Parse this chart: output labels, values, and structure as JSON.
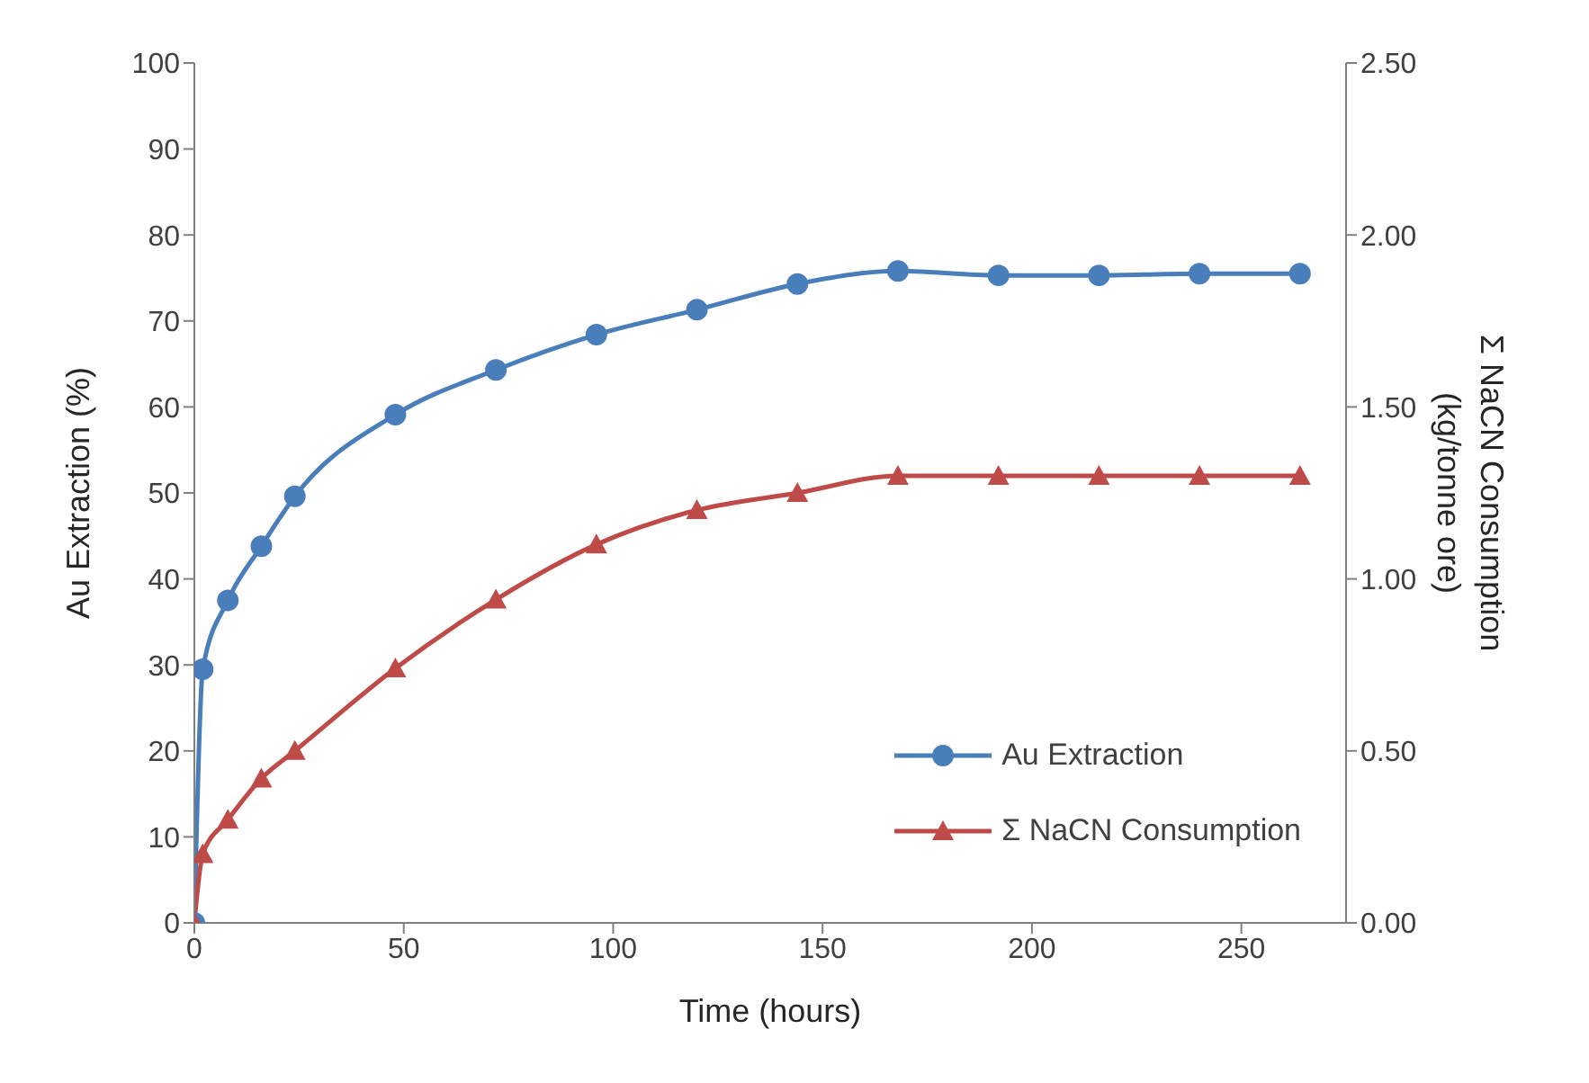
{
  "chart_data": {
    "type": "line",
    "xlabel": "Time (hours)",
    "ylabel": "Au Extraction (%)",
    "y2label": "Σ NaCN Consumption (kg/tonne ore)",
    "x": [
      0,
      2,
      8,
      16,
      24,
      48,
      72,
      96,
      120,
      144,
      168,
      192,
      216,
      240,
      264
    ],
    "series": [
      {
        "name": "Au Extraction",
        "color": "#4a7ebb",
        "marker": "circle",
        "values": [
          0,
          29.5,
          37.5,
          43.8,
          49.6,
          59.1,
          64.3,
          68.4,
          71.3,
          74.3,
          75.8,
          75.3,
          75.3,
          75.5,
          75.5
        ]
      },
      {
        "name": "Σ NaCN Consumption",
        "color": "#be4b48",
        "marker": "triangle",
        "axis": "y2",
        "values": [
          0,
          0.2,
          0.3,
          0.42,
          0.5,
          0.74,
          0.94,
          1.1,
          1.2,
          1.25,
          1.3,
          1.3,
          1.3,
          1.3,
          1.3
        ]
      }
    ],
    "xlim": [
      0,
      275
    ],
    "xticks": [
      0,
      50,
      100,
      150,
      200,
      250
    ],
    "ylim": [
      0,
      100
    ],
    "yticks": [
      0,
      10,
      20,
      30,
      40,
      50,
      60,
      70,
      80,
      90,
      100
    ],
    "y2lim": [
      0,
      2.5
    ],
    "y2ticks": [
      {
        "value": 0,
        "label": "0.00"
      },
      {
        "value": 0.5,
        "label": "0.50"
      },
      {
        "value": 1,
        "label": "1.00"
      },
      {
        "value": 1.5,
        "label": "1.50"
      },
      {
        "value": 2,
        "label": "2.00"
      },
      {
        "value": 2.5,
        "label": "2.50"
      }
    ],
    "legend": "bottom right",
    "grid": false,
    "line_style": "solid"
  }
}
